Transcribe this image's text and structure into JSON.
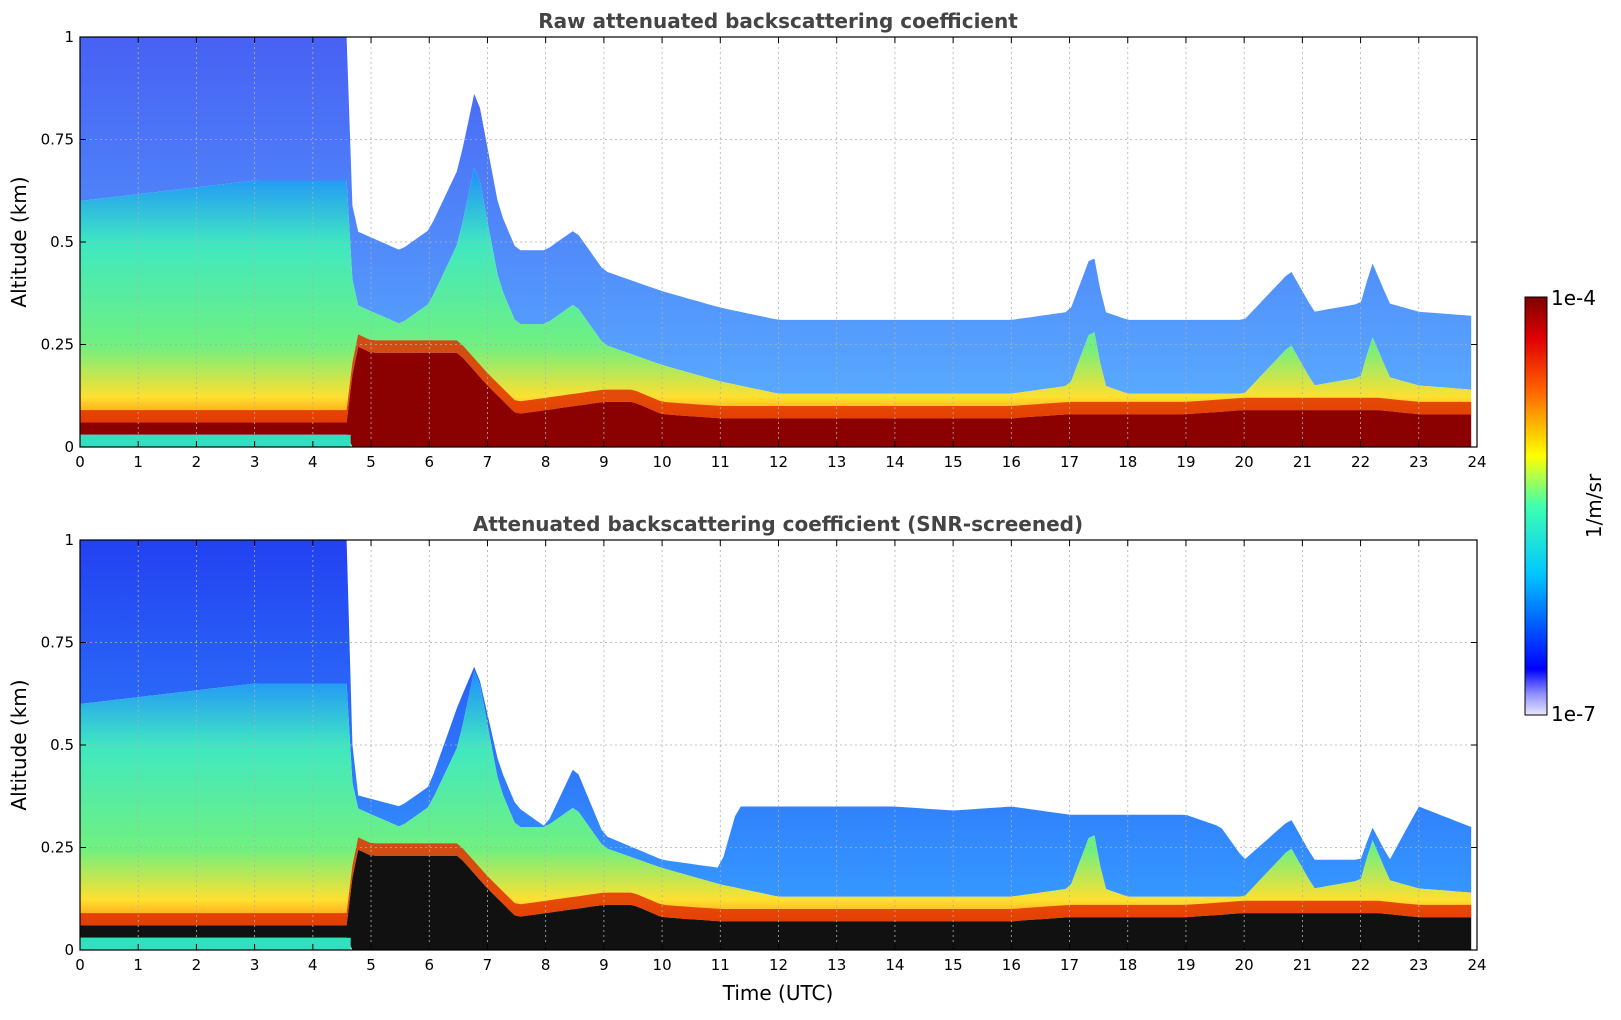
{
  "chart_data": [
    {
      "type": "heatmap",
      "title": "Raw attenuated backscattering coefficient",
      "xlabel": "",
      "ylabel": "Altitude (km)",
      "xlim": [
        0,
        24
      ],
      "ylim": [
        0,
        1
      ],
      "x_ticks": [
        "0",
        "1",
        "2",
        "3",
        "4",
        "5",
        "6",
        "7",
        "8",
        "9",
        "10",
        "11",
        "12",
        "13",
        "14",
        "15",
        "16",
        "17",
        "18",
        "19",
        "20",
        "21",
        "22",
        "23",
        "24"
      ],
      "y_ticks": [
        "0",
        "0.25",
        "0.5",
        "0.75",
        "1"
      ],
      "grid": true,
      "cloud_base_km": [
        [
          0,
          0.03
        ],
        [
          4.65,
          0.03
        ],
        [
          4.7,
          0.22
        ],
        [
          5.0,
          0.2
        ],
        [
          5.5,
          0.2
        ],
        [
          6.0,
          0.2
        ],
        [
          6.5,
          0.2
        ],
        [
          7.0,
          0.12
        ],
        [
          7.5,
          0.05
        ],
        [
          8.0,
          0.06
        ],
        [
          8.5,
          0.07
        ],
        [
          9.0,
          0.08
        ],
        [
          9.5,
          0.08
        ],
        [
          10.0,
          0.05
        ],
        [
          11.0,
          0.04
        ],
        [
          12.0,
          0.04
        ],
        [
          13.0,
          0.04
        ],
        [
          14.0,
          0.04
        ],
        [
          15.0,
          0.04
        ],
        [
          16.0,
          0.04
        ],
        [
          17.0,
          0.05
        ],
        [
          17.4,
          0.05
        ],
        [
          18.0,
          0.05
        ],
        [
          19.0,
          0.05
        ],
        [
          20.0,
          0.06
        ],
        [
          21.0,
          0.06
        ],
        [
          22.0,
          0.06
        ],
        [
          22.3,
          0.06
        ],
        [
          23.0,
          0.05
        ],
        [
          23.9,
          0.05
        ]
      ],
      "boundary_layer_top_km": [
        [
          0,
          0.6
        ],
        [
          3.0,
          0.65
        ],
        [
          4.6,
          0.65
        ],
        [
          4.7,
          0.35
        ],
        [
          5.5,
          0.3
        ],
        [
          6.0,
          0.35
        ],
        [
          6.5,
          0.5
        ],
        [
          6.8,
          0.7
        ],
        [
          7.2,
          0.4
        ],
        [
          7.5,
          0.3
        ],
        [
          8.0,
          0.3
        ],
        [
          8.5,
          0.35
        ],
        [
          9.0,
          0.25
        ],
        [
          10.0,
          0.2
        ],
        [
          11.0,
          0.16
        ],
        [
          12.0,
          0.13
        ],
        [
          13.0,
          0.13
        ],
        [
          14.0,
          0.13
        ],
        [
          15.0,
          0.13
        ],
        [
          16.0,
          0.13
        ],
        [
          17.0,
          0.15
        ],
        [
          17.4,
          0.3
        ],
        [
          17.6,
          0.15
        ],
        [
          18.0,
          0.13
        ],
        [
          19.0,
          0.13
        ],
        [
          20.0,
          0.13
        ],
        [
          20.8,
          0.25
        ],
        [
          21.2,
          0.15
        ],
        [
          22.0,
          0.17
        ],
        [
          22.2,
          0.27
        ],
        [
          22.5,
          0.17
        ],
        [
          23.0,
          0.15
        ],
        [
          23.9,
          0.14
        ]
      ]
    },
    {
      "type": "heatmap",
      "title": "Attenuated backscattering coefficient (SNR-screened)",
      "xlabel": "Time (UTC)",
      "ylabel": "Altitude (km)",
      "xlim": [
        0,
        24
      ],
      "ylim": [
        0,
        1
      ],
      "x_ticks": [
        "0",
        "1",
        "2",
        "3",
        "4",
        "5",
        "6",
        "7",
        "8",
        "9",
        "10",
        "11",
        "12",
        "13",
        "14",
        "15",
        "16",
        "17",
        "18",
        "19",
        "20",
        "21",
        "22",
        "23",
        "24"
      ],
      "y_ticks": [
        "0",
        "0.25",
        "0.5",
        "0.75",
        "1"
      ],
      "grid": true,
      "screened_top_km": [
        [
          0,
          1.0
        ],
        [
          4.6,
          1.0
        ],
        [
          4.7,
          0.38
        ],
        [
          5.5,
          0.35
        ],
        [
          6.0,
          0.4
        ],
        [
          6.5,
          0.6
        ],
        [
          6.8,
          0.7
        ],
        [
          7.2,
          0.45
        ],
        [
          7.5,
          0.35
        ],
        [
          8.0,
          0.3
        ],
        [
          8.5,
          0.45
        ],
        [
          9.0,
          0.28
        ],
        [
          10.0,
          0.22
        ],
        [
          11.0,
          0.2
        ],
        [
          11.3,
          0.35
        ],
        [
          12.0,
          0.35
        ],
        [
          13.0,
          0.35
        ],
        [
          14.0,
          0.35
        ],
        [
          15.0,
          0.34
        ],
        [
          16.0,
          0.35
        ],
        [
          17.0,
          0.33
        ],
        [
          18.0,
          0.33
        ],
        [
          19.0,
          0.33
        ],
        [
          19.6,
          0.3
        ],
        [
          20.0,
          0.22
        ],
        [
          20.8,
          0.32
        ],
        [
          21.2,
          0.22
        ],
        [
          22.0,
          0.22
        ],
        [
          22.2,
          0.3
        ],
        [
          22.5,
          0.22
        ],
        [
          23.0,
          0.35
        ],
        [
          23.9,
          0.3
        ]
      ]
    }
  ],
  "colorbar": {
    "label": "1/m/sr",
    "min_label": "1e-7",
    "max_label": "1e-4",
    "scale": "log",
    "colormap": "jet",
    "low_color": "#e8e8fa",
    "high_color": "#800000"
  }
}
